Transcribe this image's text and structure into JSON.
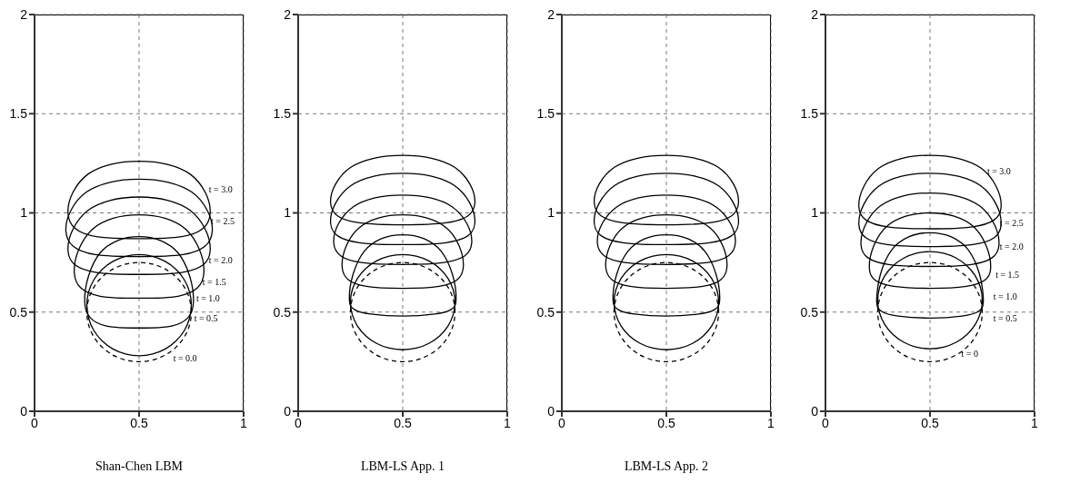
{
  "chart_data": [
    {
      "type": "line",
      "title": "Shan-Chen LBM",
      "xlim": [
        0,
        1
      ],
      "ylim": [
        0,
        2
      ],
      "xticks": [
        0,
        0.5,
        1
      ],
      "yticks": [
        0,
        0.5,
        1,
        1.5,
        2
      ],
      "grid": true,
      "annotations": [
        "t = 3.0",
        "t = 2.5",
        "t = 2.0",
        "t = 1.5",
        "t = 1.0",
        "t = 0.5",
        "t = 0.0"
      ]
    },
    {
      "type": "line",
      "title": "LBM-LS App. 1",
      "xlim": [
        0,
        1
      ],
      "ylim": [
        0,
        2
      ],
      "xticks": [
        0,
        0.5,
        1
      ],
      "yticks": [
        0,
        0.5,
        1,
        1.5,
        2
      ],
      "grid": true
    },
    {
      "type": "line",
      "title": "LBM-LS App. 2",
      "xlim": [
        0,
        1
      ],
      "ylim": [
        0,
        2
      ],
      "xticks": [
        0,
        0.5,
        1
      ],
      "yticks": [
        0,
        0.5,
        1,
        1.5,
        2
      ],
      "grid": true
    },
    {
      "type": "line",
      "xlim": [
        0,
        1
      ],
      "ylim": [
        0,
        2
      ],
      "xticks": [
        0,
        0.5,
        1
      ],
      "yticks": [
        0,
        0.5,
        1,
        1.5,
        2
      ],
      "grid": true,
      "annotations": [
        "t = 3.0",
        "t = 2.5",
        "t = 2.0",
        "t = 1.5",
        "t = 1.0",
        "t = 0.5",
        "t = 0"
      ]
    }
  ]
}
